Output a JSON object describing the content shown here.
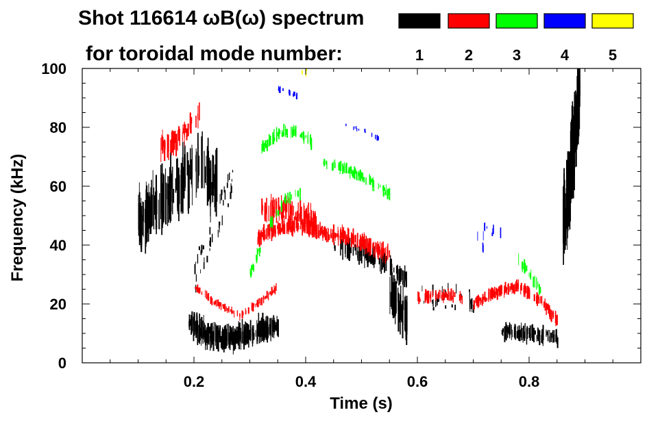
{
  "chart_data": {
    "type": "spectrogram",
    "title_line1": "Shot 116614 ωB(ω) spectrum",
    "title_line2": "for toroidal mode number:",
    "xlabel": "Time (s)",
    "ylabel": "Frequency (kHz)",
    "xlim": [
      0.0,
      1.0
    ],
    "ylim": [
      0,
      100
    ],
    "x_tick_labels": [
      "0.2",
      "0.4",
      "0.6",
      "0.8"
    ],
    "x_ticks": [
      0.2,
      0.4,
      0.6,
      0.8
    ],
    "y_tick_labels": [
      "0",
      "20",
      "40",
      "60",
      "80",
      "100"
    ],
    "y_ticks": [
      0,
      20,
      40,
      60,
      80,
      100
    ],
    "legend": [
      {
        "n": "1",
        "color": "#000000"
      },
      {
        "n": "2",
        "color": "#ff0000"
      },
      {
        "n": "3",
        "color": "#00ff00"
      },
      {
        "n": "4",
        "color": "#0000ff"
      },
      {
        "n": "5",
        "color": "#ffff00"
      }
    ],
    "series": [
      {
        "mode": "1",
        "color": "#000000",
        "features": [
          {
            "kind": "band",
            "x": [
              0.1,
              0.14,
              0.18,
              0.21,
              0.24
            ],
            "y": [
              48,
              55,
              62,
              68,
              60
            ],
            "spread": 14,
            "density": 160
          },
          {
            "kind": "band",
            "x": [
              0.19,
              0.22,
              0.25,
              0.28,
              0.31,
              0.34,
              0.35
            ],
            "y": [
              14,
              10,
              8,
              9,
              11,
              12,
              13
            ],
            "spread": 6,
            "density": 220
          },
          {
            "kind": "band",
            "x": [
              0.45,
              0.5,
              0.55,
              0.58
            ],
            "y": [
              40,
              37,
              33,
              28
            ],
            "spread": 5,
            "density": 80
          },
          {
            "kind": "band",
            "x": [
              0.55,
              0.58
            ],
            "y": [
              25,
              15
            ],
            "spread": 10,
            "density": 50
          },
          {
            "kind": "band",
            "x": [
              0.75,
              0.79,
              0.83,
              0.85
            ],
            "y": [
              11,
              10,
              9,
              8
            ],
            "spread": 4,
            "density": 90
          },
          {
            "kind": "band",
            "x": [
              0.86,
              0.88,
              0.89
            ],
            "y": [
              45,
              75,
              95
            ],
            "spread": 20,
            "density": 90
          },
          {
            "kind": "scatter",
            "x": [
              0.2,
              0.27
            ],
            "y": [
              30,
              62
            ],
            "spread": 6,
            "density": 40
          },
          {
            "kind": "scatter",
            "x": [
              0.6,
              0.7
            ],
            "y": [
              22,
              22
            ],
            "spread": 4,
            "density": 30
          }
        ]
      },
      {
        "mode": "2",
        "color": "#ff0000",
        "features": [
          {
            "kind": "band",
            "x": [
              0.14,
              0.17,
              0.2,
              0.21
            ],
            "y": [
              73,
              76,
              82,
              85
            ],
            "spread": 6,
            "density": 50
          },
          {
            "kind": "band",
            "x": [
              0.2,
              0.24,
              0.28,
              0.32,
              0.35
            ],
            "y": [
              26,
              20,
              16,
              21,
              26
            ],
            "spread": 2,
            "density": 90
          },
          {
            "kind": "band",
            "x": [
              0.31,
              0.35,
              0.39,
              0.43,
              0.47,
              0.51,
              0.55
            ],
            "y": [
              42,
              46,
              47,
              44,
              43,
              40,
              37
            ],
            "spread": 4,
            "density": 260
          },
          {
            "kind": "band",
            "x": [
              0.32,
              0.37,
              0.42
            ],
            "y": [
              52,
              52,
              48
            ],
            "spread": 6,
            "density": 80
          },
          {
            "kind": "band",
            "x": [
              0.6,
              0.64,
              0.68
            ],
            "y": [
              22,
              23,
              22
            ],
            "spread": 3,
            "density": 50
          },
          {
            "kind": "band",
            "x": [
              0.7,
              0.74,
              0.78,
              0.82,
              0.85
            ],
            "y": [
              20,
              24,
              26,
              21,
              14
            ],
            "spread": 3,
            "density": 140
          }
        ]
      },
      {
        "mode": "3",
        "color": "#00ff00",
        "features": [
          {
            "kind": "band",
            "x": [
              0.32,
              0.35,
              0.38,
              0.41
            ],
            "y": [
              73,
              78,
              79,
              75
            ],
            "spread": 3,
            "density": 60
          },
          {
            "kind": "band",
            "x": [
              0.3,
              0.33,
              0.36,
              0.39
            ],
            "y": [
              30,
              45,
              55,
              58
            ],
            "spread": 3,
            "density": 40
          },
          {
            "kind": "band",
            "x": [
              0.43,
              0.47,
              0.51,
              0.55
            ],
            "y": [
              68,
              66,
              62,
              57
            ],
            "spread": 3,
            "density": 70
          },
          {
            "kind": "band",
            "x": [
              0.78,
              0.8,
              0.82
            ],
            "y": [
              35,
              30,
              25
            ],
            "spread": 3,
            "density": 20
          }
        ]
      },
      {
        "mode": "4",
        "color": "#0000ff",
        "features": [
          {
            "kind": "band",
            "x": [
              0.35,
              0.37,
              0.39
            ],
            "y": [
              93,
              92,
              90
            ],
            "spread": 1.5,
            "density": 16
          },
          {
            "kind": "band",
            "x": [
              0.47,
              0.5,
              0.53
            ],
            "y": [
              81,
              79,
              76
            ],
            "spread": 1.5,
            "density": 12
          },
          {
            "kind": "scatter",
            "x": [
              0.69,
              0.75
            ],
            "y": [
              38,
              47
            ],
            "spread": 4,
            "density": 10
          }
        ]
      },
      {
        "mode": "5",
        "color": "#ffff00",
        "features": [
          {
            "kind": "scatter",
            "x": [
              0.39,
              0.41
            ],
            "y": [
              99,
              100
            ],
            "spread": 1,
            "density": 3
          }
        ]
      }
    ]
  }
}
